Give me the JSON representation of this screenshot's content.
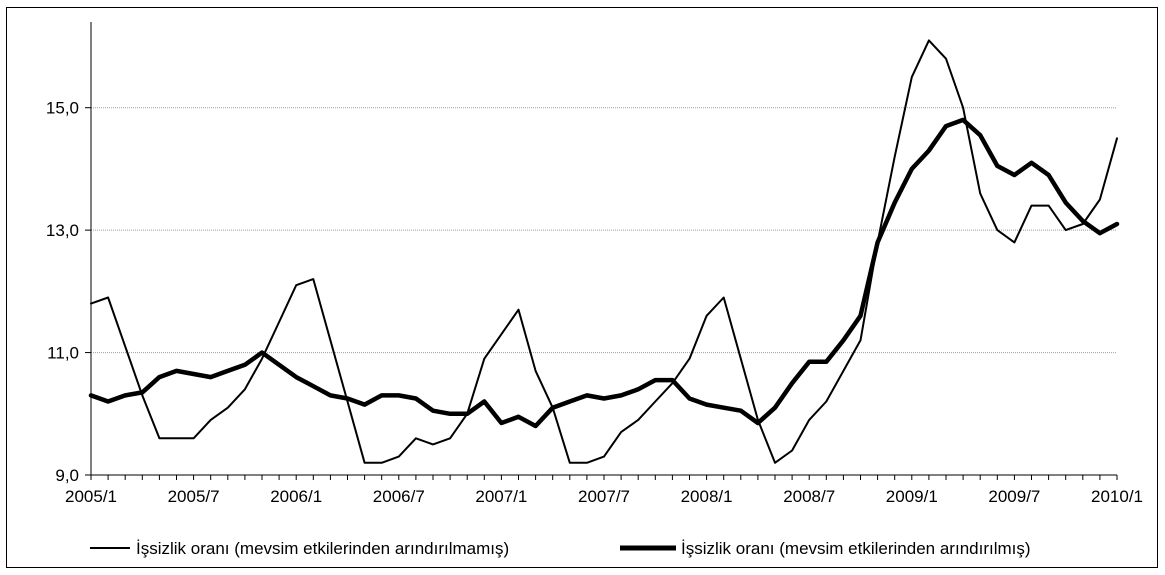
{
  "chart_data": {
    "type": "line",
    "title": "",
    "xlabel": "",
    "ylabel": "",
    "ylim": [
      9.0,
      16.4
    ],
    "y_ticks": [
      "9,0",
      "11,0",
      "13,0",
      "15,0"
    ],
    "y_tick_values": [
      9.0,
      11.0,
      13.0,
      15.0
    ],
    "x_tick_labels": [
      "2005/1",
      "2005/7",
      "2006/1",
      "2006/7",
      "2007/1",
      "2007/7",
      "2008/1",
      "2008/7",
      "2009/1",
      "2009/7",
      "2010/1"
    ],
    "x_tick_indices": [
      0,
      6,
      12,
      18,
      24,
      30,
      36,
      42,
      48,
      54,
      60
    ],
    "grid": "horizontal",
    "legend_position": "bottom",
    "series": [
      {
        "name": "İşsizlik oranı (mevsim etkilerinden arındırılmamış)",
        "style": "thin",
        "values": [
          11.8,
          11.9,
          11.1,
          10.3,
          9.6,
          9.6,
          9.6,
          9.9,
          10.1,
          10.4,
          10.9,
          11.5,
          12.1,
          12.2,
          11.2,
          10.2,
          9.2,
          9.2,
          9.3,
          9.6,
          9.5,
          9.6,
          10.0,
          10.9,
          11.3,
          11.7,
          10.7,
          10.1,
          9.2,
          9.2,
          9.3,
          9.7,
          9.9,
          10.2,
          10.5,
          10.9,
          11.6,
          11.9,
          10.9,
          9.9,
          9.2,
          9.4,
          9.9,
          10.2,
          10.7,
          11.2,
          12.8,
          14.2,
          15.5,
          16.1,
          15.8,
          15.0,
          13.6,
          13.0,
          12.8,
          13.4,
          13.4,
          13.0,
          13.1,
          13.5,
          14.5
        ]
      },
      {
        "name": "İşsizlik oranı (mevsim etkilerinden arındırılmış)",
        "style": "thick",
        "values": [
          10.3,
          10.2,
          10.3,
          10.35,
          10.6,
          10.7,
          10.65,
          10.6,
          10.7,
          10.8,
          11.0,
          10.8,
          10.6,
          10.45,
          10.3,
          10.25,
          10.15,
          10.3,
          10.3,
          10.25,
          10.05,
          10.0,
          10.0,
          10.2,
          9.85,
          9.95,
          9.8,
          10.1,
          10.2,
          10.3,
          10.25,
          10.3,
          10.4,
          10.55,
          10.55,
          10.25,
          10.15,
          10.1,
          10.05,
          9.85,
          10.1,
          10.5,
          10.85,
          10.85,
          11.2,
          11.6,
          12.8,
          13.45,
          14.0,
          14.3,
          14.7,
          14.8,
          14.55,
          14.05,
          13.9,
          14.1,
          13.9,
          13.45,
          13.15,
          12.95,
          13.1
        ]
      }
    ]
  },
  "colors": {
    "line": "#000000",
    "grid": "#a0a0a0",
    "background": "#ffffff"
  }
}
